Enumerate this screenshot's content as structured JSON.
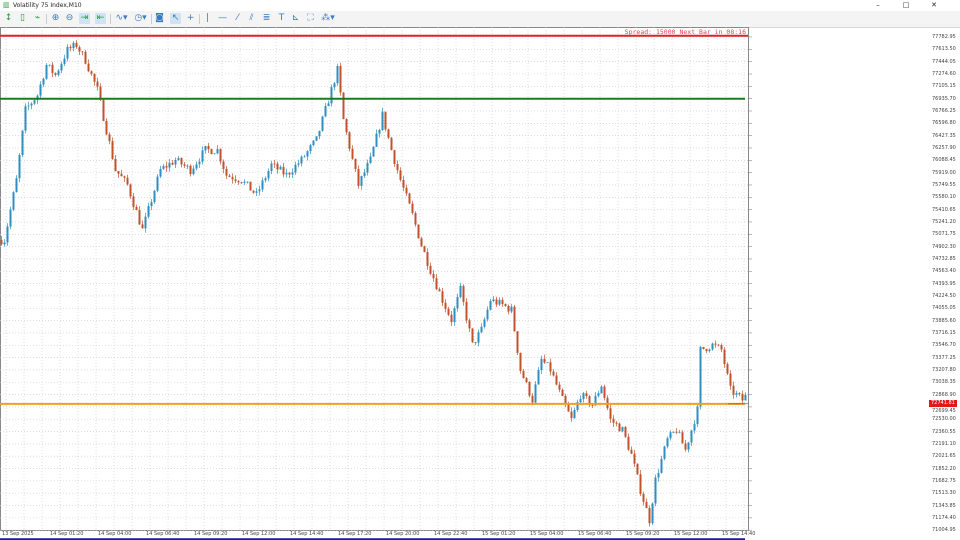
{
  "window": {
    "title": "Volatility 75 Index,M10",
    "controls": [
      "–",
      "□",
      "✕"
    ]
  },
  "toolbar": {
    "icons": [
      "new-order-icon",
      "one-click-icon",
      "chart-type-icon",
      "zoom-in-icon",
      "zoom-out-icon",
      "auto-scroll-icon",
      "chart-shift-icon",
      "indicators-icon",
      "timeframe-icon",
      "screenshot-icon",
      "cursor-icon",
      "crosshair-icon",
      "vertical-line-icon",
      "horizontal-line-icon",
      "trend-line-icon",
      "equidistant-channel-icon",
      "fibonacci-icon",
      "text-icon",
      "arrows-icon",
      "rectangle-icon",
      "objects-icon"
    ]
  },
  "chart": {
    "spread_text": "Spread: 15000 Next Bar in 08:16",
    "current_price_label": "72741.81",
    "colors": {
      "bull": "#2f8fc0",
      "bear": "#c0522c",
      "grid": "#c8c8c8",
      "level_red": "#e0202a",
      "level_green": "#1f7a1f",
      "level_orange": "#f0a020",
      "level_blue": "#1a1aa0"
    }
  },
  "chart_data": {
    "type": "candlestick",
    "timeframe": "M10",
    "y_ticks": [
      "77782.95",
      "77613.50",
      "77444.05",
      "77274.60",
      "77105.15",
      "76935.70",
      "76766.25",
      "76596.80",
      "76427.35",
      "76257.90",
      "76088.45",
      "75919.00",
      "75749.55",
      "75580.10",
      "75410.65",
      "75241.20",
      "75071.75",
      "74902.30",
      "74732.85",
      "74563.40",
      "74393.95",
      "74224.50",
      "74055.05",
      "73885.60",
      "73716.15",
      "73546.70",
      "73377.25",
      "73207.80",
      "73038.35",
      "72868.90",
      "72699.45",
      "72530.00",
      "72360.55",
      "72191.10",
      "72021.65",
      "71852.20",
      "71682.75",
      "71513.30",
      "71343.85",
      "71174.40",
      "71004.95"
    ],
    "x_ticks": [
      "13 Sep 2025",
      "14 Sep 01:20",
      "14 Sep 04:00",
      "14 Sep 06:40",
      "14 Sep 09:20",
      "14 Sep 12:00",
      "14 Sep 14:40",
      "14 Sep 17:20",
      "14 Sep 20:00",
      "14 Sep 22:40",
      "15 Sep 01:20",
      "15 Sep 04:00",
      "15 Sep 06:40",
      "15 Sep 09:20",
      "15 Sep 12:00",
      "15 Sep 14:40"
    ],
    "ylim": [
      70870,
      77830
    ],
    "horizontal_levels": [
      {
        "price": 77800,
        "color": "#e0202a"
      },
      {
        "price": 76935,
        "color": "#1f7a1f"
      },
      {
        "price": 72741.81,
        "color": "#f0a020"
      },
      {
        "price": 70880,
        "color": "#1a1aa0"
      }
    ],
    "close_path": [
      {
        "bar": 1,
        "close": 74994
      },
      {
        "bar": 5,
        "close": 75818
      },
      {
        "bar": 8,
        "close": 76780
      },
      {
        "bar": 12,
        "close": 76986
      },
      {
        "bar": 15,
        "close": 77398
      },
      {
        "bar": 18,
        "close": 77261
      },
      {
        "bar": 22,
        "close": 77604
      },
      {
        "bar": 25,
        "close": 77673
      },
      {
        "bar": 28,
        "close": 77467
      },
      {
        "bar": 32,
        "close": 77055
      },
      {
        "bar": 35,
        "close": 76505
      },
      {
        "bar": 38,
        "close": 75956
      },
      {
        "bar": 42,
        "close": 75749
      },
      {
        "bar": 47,
        "close": 75131
      },
      {
        "bar": 50,
        "close": 75543
      },
      {
        "bar": 53,
        "close": 75956
      },
      {
        "bar": 58,
        "close": 76093
      },
      {
        "bar": 63,
        "close": 75956
      },
      {
        "bar": 68,
        "close": 76230
      },
      {
        "bar": 72,
        "close": 76230
      },
      {
        "bar": 75,
        "close": 75887
      },
      {
        "bar": 80,
        "close": 75818
      },
      {
        "bar": 85,
        "close": 75612
      },
      {
        "bar": 90,
        "close": 76024
      },
      {
        "bar": 95,
        "close": 75887
      },
      {
        "bar": 100,
        "close": 76093
      },
      {
        "bar": 105,
        "close": 76368
      },
      {
        "bar": 108,
        "close": 76780
      },
      {
        "bar": 112,
        "close": 77330
      },
      {
        "bar": 114,
        "close": 76643
      },
      {
        "bar": 117,
        "close": 76093
      },
      {
        "bar": 119,
        "close": 75749
      },
      {
        "bar": 123,
        "close": 76093
      },
      {
        "bar": 127,
        "close": 76711
      },
      {
        "bar": 130,
        "close": 76230
      },
      {
        "bar": 133,
        "close": 75818
      },
      {
        "bar": 137,
        "close": 75337
      },
      {
        "bar": 140,
        "close": 74925
      },
      {
        "bar": 143,
        "close": 74582
      },
      {
        "bar": 147,
        "close": 74169
      },
      {
        "bar": 150,
        "close": 73895
      },
      {
        "bar": 153,
        "close": 74307
      },
      {
        "bar": 157,
        "close": 73551
      },
      {
        "bar": 160,
        "close": 73757
      },
      {
        "bar": 163,
        "close": 74169
      },
      {
        "bar": 167,
        "close": 74101
      },
      {
        "bar": 170,
        "close": 74032
      },
      {
        "bar": 173,
        "close": 73208
      },
      {
        "bar": 177,
        "close": 72795
      },
      {
        "bar": 180,
        "close": 73345
      },
      {
        "bar": 183,
        "close": 73208
      },
      {
        "bar": 187,
        "close": 72795
      },
      {
        "bar": 190,
        "close": 72521
      },
      {
        "bar": 193,
        "close": 72864
      },
      {
        "bar": 197,
        "close": 72727
      },
      {
        "bar": 200,
        "close": 73001
      },
      {
        "bar": 203,
        "close": 72521
      },
      {
        "bar": 207,
        "close": 72383
      },
      {
        "bar": 210,
        "close": 72040
      },
      {
        "bar": 213,
        "close": 71559
      },
      {
        "bar": 216,
        "close": 71147
      },
      {
        "bar": 218,
        "close": 71696
      },
      {
        "bar": 222,
        "close": 72246
      },
      {
        "bar": 225,
        "close": 72383
      },
      {
        "bar": 228,
        "close": 72108
      },
      {
        "bar": 232,
        "close": 72658
      },
      {
        "bar": 233,
        "close": 73482
      },
      {
        "bar": 237,
        "close": 73551
      },
      {
        "bar": 240,
        "close": 73482
      },
      {
        "bar": 243,
        "close": 72933
      },
      {
        "bar": 247,
        "close": 72795
      },
      {
        "bar": 248,
        "close": 72864
      }
    ]
  }
}
